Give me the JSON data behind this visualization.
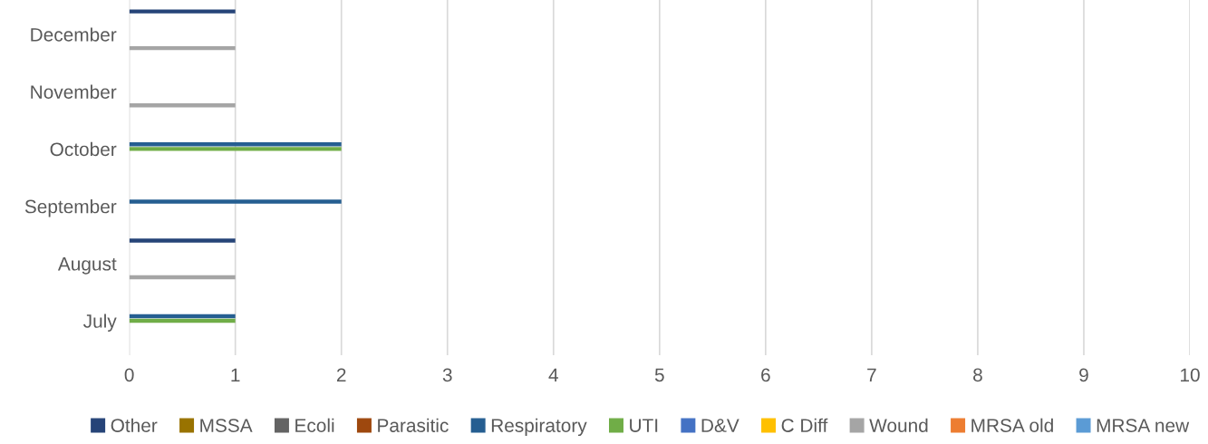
{
  "chart_data": {
    "type": "bar",
    "orientation": "horizontal",
    "categories": [
      "December",
      "November",
      "October",
      "September",
      "August",
      "July"
    ],
    "series": [
      {
        "name": "Other",
        "color": "#264478",
        "values": [
          1,
          0,
          0,
          0,
          1,
          0
        ]
      },
      {
        "name": "MSSA",
        "color": "#997300",
        "values": [
          0,
          0,
          0,
          0,
          0,
          0
        ]
      },
      {
        "name": "Ecoli",
        "color": "#636363",
        "values": [
          0,
          0,
          0,
          0,
          0,
          0
        ]
      },
      {
        "name": "Parasitic",
        "color": "#9e480e",
        "values": [
          0,
          0,
          0,
          0,
          0,
          0
        ]
      },
      {
        "name": "Respiratory",
        "color": "#255e91",
        "values": [
          0,
          0,
          2,
          2,
          0,
          1
        ]
      },
      {
        "name": "UTI",
        "color": "#70ad47",
        "values": [
          0,
          0,
          2,
          0,
          0,
          1
        ]
      },
      {
        "name": "D&V",
        "color": "#4472c4",
        "values": [
          0,
          0,
          0,
          0,
          0,
          0
        ]
      },
      {
        "name": "C Diff",
        "color": "#ffc000",
        "values": [
          0,
          0,
          0,
          0,
          0,
          0
        ]
      },
      {
        "name": "Wound",
        "color": "#a5a5a5",
        "values": [
          1,
          1,
          0,
          0,
          1,
          0
        ]
      },
      {
        "name": "MRSA old",
        "color": "#ed7d31",
        "values": [
          0,
          0,
          0,
          0,
          0,
          0
        ]
      },
      {
        "name": "MRSA new",
        "color": "#5b9bd5",
        "values": [
          0,
          0,
          0,
          0,
          0,
          0
        ]
      }
    ],
    "xlim": [
      0,
      10
    ],
    "xticks": [
      0,
      1,
      2,
      3,
      4,
      5,
      6,
      7,
      8,
      9,
      10
    ],
    "grid": "x",
    "legend": "bottom"
  }
}
